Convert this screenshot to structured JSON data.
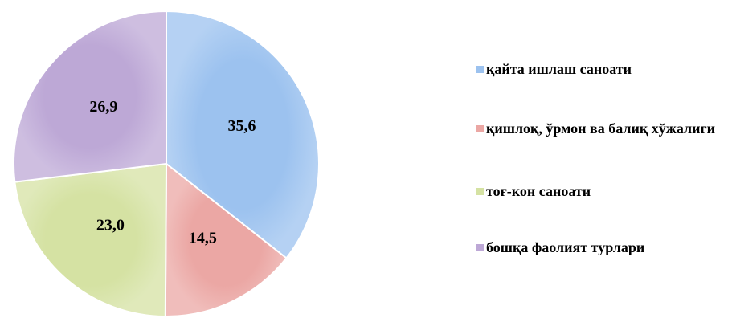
{
  "chart_data": {
    "type": "pie",
    "categories": [
      "қайта ишлаш саноати",
      "қишлоқ, ўрмон ва балиқ хўжалиги",
      "тоғ-кон саноати",
      "бошқа фаолият турлари"
    ],
    "values": [
      35.6,
      14.5,
      23.0,
      26.9
    ],
    "value_labels": [
      "35,6",
      "14,5",
      "23,0",
      "26,9"
    ],
    "colors": [
      "#9cc2ef",
      "#eba7a4",
      "#d5e2a3",
      "#bda8d6"
    ],
    "legend": "right"
  }
}
